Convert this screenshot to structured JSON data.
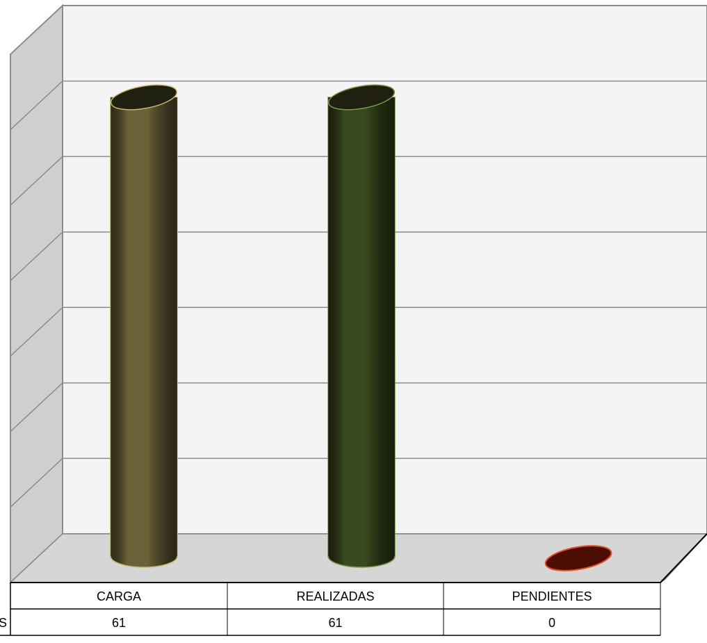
{
  "chart_data": {
    "type": "bar",
    "style": "3d-cylinder",
    "categories": [
      "CARGA",
      "REALIZADAS",
      "PENDIENTES"
    ],
    "series": [
      {
        "name": "S",
        "values": [
          61,
          61,
          0
        ]
      }
    ],
    "ylim": [
      0,
      70
    ],
    "grid": true,
    "legend": "in-table-left",
    "data_table": true,
    "colors": {
      "CARGA": "#6b6239",
      "REALIZADAS": "#3a4a1e",
      "PENDIENTES": "#4a0d00",
      "CARGA_edge": "#c8b86a",
      "REALIZADAS_edge": "#7d9a4a",
      "PENDIENTES_edge": "#e0512a",
      "wall": "#f4f4f4",
      "side_wall": "#cfcfcf",
      "floor": "#d6d6d6",
      "grid": "#8c8c8c"
    }
  }
}
